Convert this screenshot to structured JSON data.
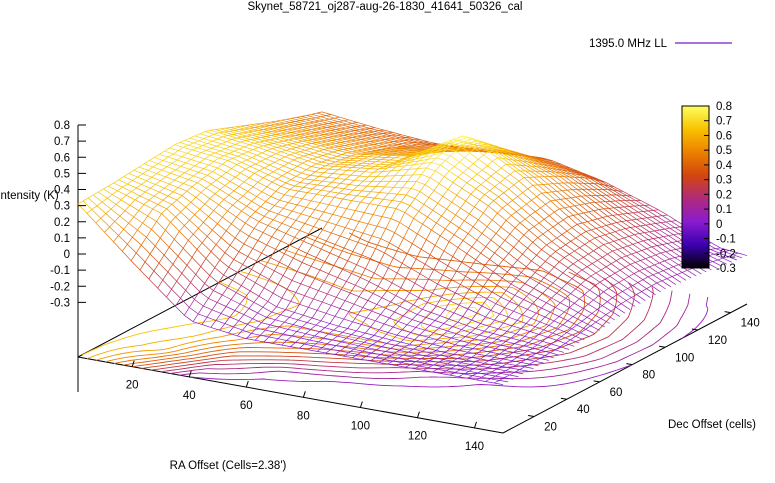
{
  "chart_data": {
    "type": "surface3d",
    "title": "Skynet_58721_oj287-aug-26-1830_41641_50326_cal",
    "xlabel": "RA Offset (Cells=2.38')",
    "ylabel": "Dec Offset (cells)",
    "zlabel": "Intensity (K)",
    "x_ticks": [
      "20",
      "40",
      "60",
      "80",
      "100",
      "120",
      "140"
    ],
    "y_ticks": [
      "20",
      "40",
      "60",
      "80",
      "100",
      "120",
      "140"
    ],
    "z_ticks": [
      "0.8",
      "0.7",
      "0.6",
      "0.5",
      "0.4",
      "0.3",
      "0.2",
      "0.1",
      "0",
      "-0.1",
      "-0.2",
      "-0.3"
    ],
    "xlim": [
      1,
      150
    ],
    "ylim": [
      1,
      150
    ],
    "zlim": [
      -0.3,
      0.8
    ],
    "colorbar": {
      "ticks": [
        "0.8",
        "0.7",
        "0.6",
        "0.5",
        "0.4",
        "0.3",
        "0.2",
        "0.1",
        "0",
        "-0.1",
        "-0.2",
        "-0.3"
      ],
      "range": [
        -0.3,
        0.8
      ],
      "palette": [
        "#000000",
        "#3b00b0",
        "#8a1bcf",
        "#b02a7a",
        "#d2460e",
        "#ec8000",
        "#f8c200",
        "#ffff60"
      ]
    },
    "legend": {
      "label": "1395.0 MHz LL",
      "color": "#9040d0",
      "placement": "top-right"
    },
    "series": [
      {
        "name": "1395.0 MHz LL",
        "description": "mesh surface with contour projection on the base plane",
        "sample_grid_x": [
          1,
          20,
          40,
          60,
          80,
          100,
          120,
          140,
          150
        ],
        "sample_grid_y": [
          1,
          20,
          40,
          60,
          80,
          100,
          120,
          140,
          150
        ],
        "sample_grid_z": [
          [
            0.65,
            0.66,
            0.68,
            0.7,
            0.68,
            0.6,
            0.52,
            0.45,
            0.42
          ],
          [
            0.35,
            0.55,
            0.62,
            0.66,
            0.64,
            0.58,
            0.5,
            0.42,
            0.38
          ],
          [
            0.05,
            0.25,
            0.45,
            0.55,
            0.58,
            0.55,
            0.48,
            0.4,
            0.35
          ],
          [
            0.0,
            0.1,
            0.35,
            0.55,
            0.62,
            0.6,
            0.52,
            0.42,
            0.36
          ],
          [
            0.0,
            0.05,
            0.25,
            0.55,
            0.72,
            0.8,
            0.62,
            0.45,
            0.38
          ],
          [
            0.0,
            0.02,
            0.12,
            0.38,
            0.55,
            0.6,
            0.5,
            0.38,
            0.3
          ],
          [
            0.0,
            0.0,
            0.05,
            0.2,
            0.32,
            0.35,
            0.3,
            0.22,
            0.18
          ],
          [
            0.0,
            0.0,
            0.02,
            0.08,
            0.14,
            0.15,
            0.12,
            0.06,
            0.02
          ],
          [
            0.0,
            0.0,
            0.0,
            0.02,
            0.05,
            0.06,
            0.04,
            0.01,
            0.0
          ]
        ]
      }
    ]
  }
}
